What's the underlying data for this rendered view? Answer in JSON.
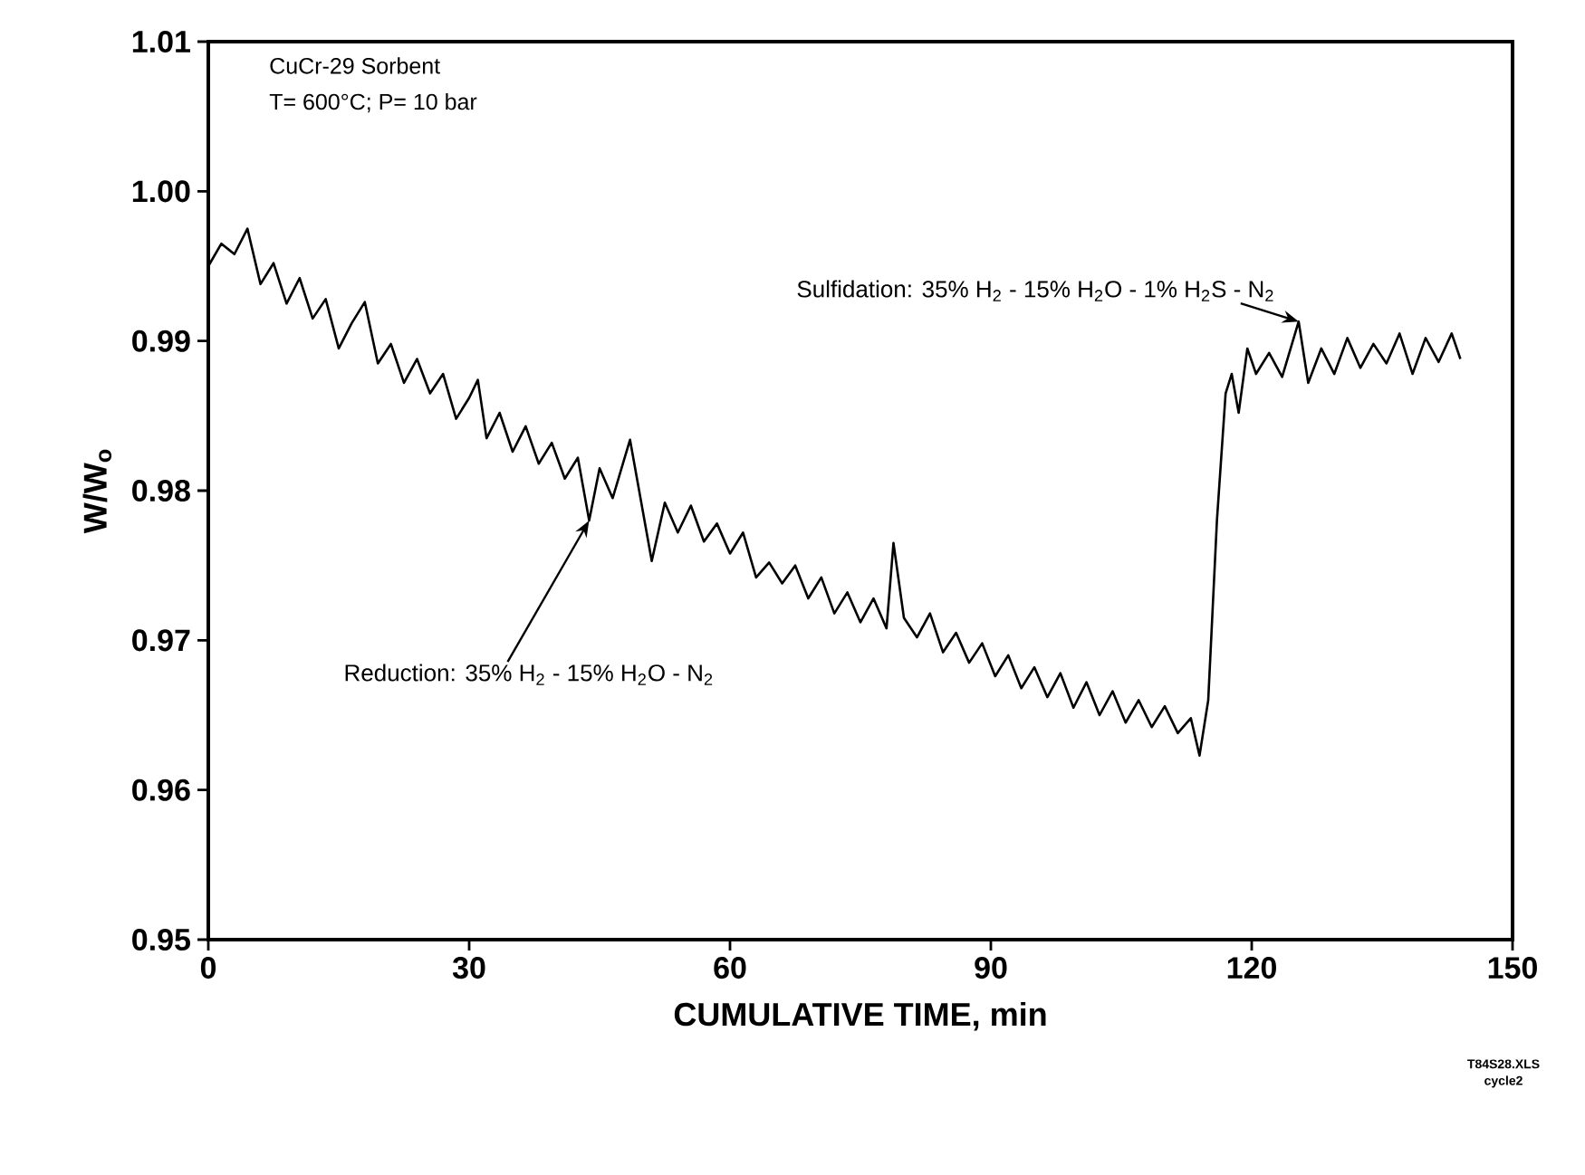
{
  "chart_data": {
    "type": "line",
    "xlabel": "CUMULATIVE TIME, min",
    "ylabel": "W/W$_{o}$",
    "x": [
      0,
      1.5,
      3,
      4.5,
      6,
      7.5,
      9,
      10.5,
      12,
      13.5,
      15,
      16.5,
      18,
      19.5,
      21,
      22.5,
      24,
      25.5,
      27,
      28.5,
      30,
      31,
      32,
      33.5,
      35,
      36.5,
      38,
      39.5,
      41,
      42.5,
      43.8,
      45,
      46.5,
      48.5,
      51,
      52.5,
      54,
      55.5,
      57,
      58.5,
      60,
      61.5,
      63,
      64.5,
      66,
      67.5,
      69,
      70.5,
      72,
      73.5,
      75,
      76.5,
      78,
      78.8,
      80,
      81.5,
      83,
      84.5,
      86,
      87.5,
      89,
      90.5,
      92,
      93.5,
      95,
      96.5,
      98,
      99.5,
      101,
      102.5,
      104,
      105.5,
      107,
      108.5,
      110,
      111.5,
      113,
      114,
      115,
      116,
      117,
      117.7,
      118.5,
      119.5,
      120.5,
      122,
      123.5,
      125.4,
      126.5,
      128,
      129.5,
      131,
      132.5,
      134,
      135.5,
      137,
      138.5,
      140,
      141.5,
      143,
      144
    ],
    "series": [
      {
        "color": "#000000",
        "values": [
          0.995,
          0.9965,
          0.9958,
          0.9975,
          0.9938,
          0.9952,
          0.9925,
          0.9942,
          0.9915,
          0.9928,
          0.9895,
          0.9912,
          0.9926,
          0.9885,
          0.9898,
          0.9872,
          0.9888,
          0.9865,
          0.9878,
          0.9848,
          0.9862,
          0.9874,
          0.9835,
          0.9852,
          0.9826,
          0.9843,
          0.9818,
          0.9832,
          0.9808,
          0.9822,
          0.978,
          0.9815,
          0.9795,
          0.9834,
          0.9753,
          0.9792,
          0.9772,
          0.979,
          0.9766,
          0.9778,
          0.9758,
          0.9772,
          0.9742,
          0.9752,
          0.9738,
          0.975,
          0.9728,
          0.9742,
          0.9718,
          0.9732,
          0.9712,
          0.9728,
          0.9708,
          0.9765,
          0.9715,
          0.9702,
          0.9718,
          0.9692,
          0.9705,
          0.9685,
          0.9698,
          0.9676,
          0.969,
          0.9668,
          0.9682,
          0.9662,
          0.9678,
          0.9655,
          0.9672,
          0.965,
          0.9666,
          0.9645,
          0.966,
          0.9642,
          0.9656,
          0.9638,
          0.9648,
          0.9623,
          0.966,
          0.978,
          0.9865,
          0.9878,
          0.9852,
          0.9895,
          0.9878,
          0.9892,
          0.9876,
          0.9913,
          0.9872,
          0.9895,
          0.9878,
          0.9902,
          0.9882,
          0.9898,
          0.9885,
          0.9905,
          0.9878,
          0.9902,
          0.9886,
          0.9905,
          0.9888
        ]
      }
    ],
    "xlim": [
      0,
      150
    ],
    "xticks": [
      0,
      30,
      60,
      90,
      120,
      150
    ],
    "ylim": [
      0.95,
      1.01
    ],
    "yticks": [
      0.95,
      0.96,
      0.97,
      0.98,
      0.99,
      {
        "value": 1.0,
        "label": "1.00"
      },
      1.01
    ],
    "marker": "none",
    "line_style": "solid",
    "annotations": [
      {
        "text": "Reduction: 35% H$_{2}$ - 15% H$_{2}$O - N$_{2}$",
        "x": 43.8,
        "y": 0.978
      },
      {
        "text": "Sulfidation: 35% H$_{2}$ - 15% H$_{2}$O - 1% H$_{2}$S - N$_{2}$",
        "x": 125.4,
        "y": 0.9913
      },
      "CuCr-29 Sorbent",
      "T= 600°C; P= 10 bar",
      "T84S28.XLS",
      "cycle2"
    ]
  }
}
